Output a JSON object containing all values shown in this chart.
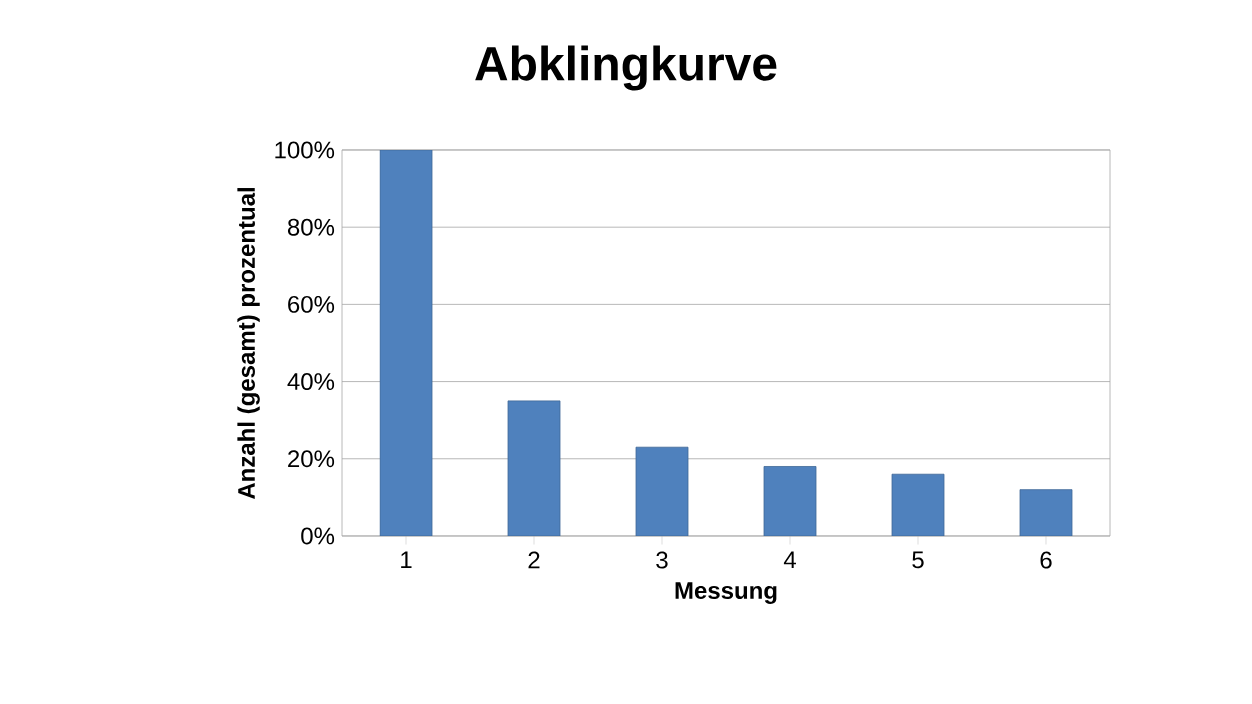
{
  "chart_data": {
    "type": "bar",
    "title": "Abklingkurve",
    "xlabel": "Messung",
    "ylabel": "Anzahl (gesamt) prozentual",
    "categories": [
      "1",
      "2",
      "3",
      "4",
      "5",
      "6"
    ],
    "values": [
      100,
      35,
      23,
      18,
      16,
      12
    ],
    "color": "#4f81bd",
    "ylim": [
      0,
      100
    ],
    "yticks": [
      {
        "value": 0,
        "label": "0%"
      },
      {
        "value": 20,
        "label": "20%"
      },
      {
        "value": 40,
        "label": "40%"
      },
      {
        "value": 60,
        "label": "60%"
      },
      {
        "value": 80,
        "label": "80%"
      },
      {
        "value": 100,
        "label": "100%"
      }
    ],
    "grid": "y"
  }
}
